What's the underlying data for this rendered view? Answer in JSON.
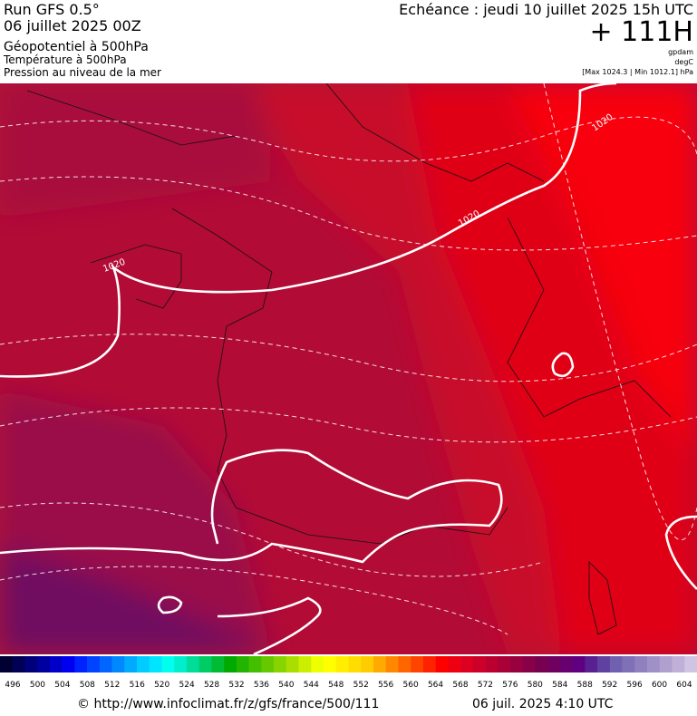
{
  "header": {
    "left": [
      "Run GFS 0.5°",
      "06 juillet 2025 00Z",
      "Géopotentiel à 500hPa",
      "Température à 500hPa",
      "Pression au niveau de la mer"
    ],
    "right": {
      "echeance": "Echéance : jeudi 10 juillet 2025 15h UTC",
      "offset": "+ 111H",
      "units": [
        "gpdam",
        "degC",
        "[Max 1024.3 | Min 1012.1] hPa"
      ]
    }
  },
  "map": {
    "contour_labels": [
      "1020",
      "1020",
      "1020"
    ]
  },
  "legend": {
    "labels": [
      496,
      500,
      504,
      508,
      512,
      516,
      520,
      524,
      528,
      532,
      536,
      540,
      544,
      548,
      552,
      556,
      560,
      564,
      568,
      572,
      576,
      580,
      584,
      588,
      592,
      596,
      600,
      604
    ],
    "colors": [
      "#000033",
      "#000055",
      "#00007a",
      "#0000a0",
      "#0000c8",
      "#0000f0",
      "#0022ff",
      "#0044ff",
      "#0066ff",
      "#0088ff",
      "#00aaff",
      "#00ccff",
      "#00e5ff",
      "#00ffee",
      "#00eecc",
      "#00dd99",
      "#00cc66",
      "#00bb33",
      "#00aa00",
      "#22b400",
      "#44bf00",
      "#66c900",
      "#88d400",
      "#aadd00",
      "#ccee00",
      "#eeff00",
      "#ffff00",
      "#ffee00",
      "#ffdd00",
      "#ffcc00",
      "#ffaa00",
      "#ff8800",
      "#ff6600",
      "#ff4400",
      "#ff2200",
      "#ff0000",
      "#ee0010",
      "#dd0020",
      "#cc0028",
      "#bb0030",
      "#aa0038",
      "#990040",
      "#880048",
      "#780050",
      "#700060",
      "#680070",
      "#600080",
      "#582090",
      "#6040a0",
      "#7060b0",
      "#8070b8",
      "#9080c0",
      "#a090c8",
      "#b0a0d0",
      "#c0b0d8",
      "#d0c4e4"
    ]
  },
  "footer": {
    "url": "© http://www.infoclimat.fr/z/gfs/france/500/111",
    "date": "06 juil. 2025  4:10 UTC"
  }
}
